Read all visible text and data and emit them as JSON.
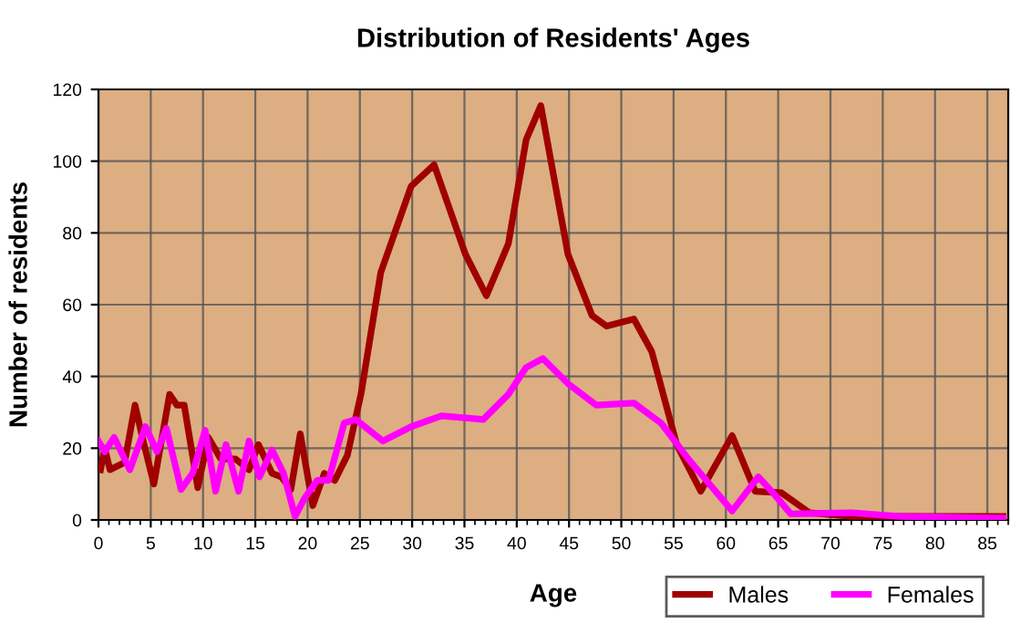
{
  "chart_data": {
    "type": "line",
    "title": "Distribution of Residents' Ages",
    "xlabel": "Age",
    "ylabel": "Number of residents",
    "xlim": [
      0,
      87
    ],
    "xticks": [
      0,
      5,
      10,
      15,
      20,
      25,
      30,
      35,
      40,
      45,
      50,
      55,
      60,
      65,
      70,
      75,
      80,
      85
    ],
    "ylim": [
      0,
      120
    ],
    "yticks": [
      0,
      20,
      40,
      60,
      80,
      100,
      120
    ],
    "grid": true,
    "legend": "bottom right",
    "marker": "none",
    "line_style": "solid",
    "series": [
      {
        "name": "Males",
        "color": "#a00000",
        "x": [
          0.2,
          0.6,
          1.1,
          2.5,
          3.5,
          4.2,
          5.3,
          6.8,
          7.5,
          8.2,
          9.5,
          10.5,
          11.7,
          13.1,
          14.4,
          15.3,
          16.6,
          17.5,
          18.4,
          19.3,
          20.5,
          21.6,
          22.6,
          23.8,
          25.1,
          27,
          29.9,
          32.1,
          35.1,
          37.1,
          39.2,
          40.9,
          42.3,
          44.9,
          47.2,
          48.6,
          51.2,
          52.9,
          55.3,
          57.6,
          60.6,
          62.8,
          65.3,
          68,
          72,
          86.5
        ],
        "values": [
          14,
          20,
          14,
          16,
          32,
          23,
          10,
          35,
          32,
          32,
          9,
          23,
          17,
          17,
          14,
          21,
          13,
          12,
          8.5,
          24,
          4,
          13,
          11,
          18,
          35,
          69,
          93,
          99,
          74,
          62.5,
          77,
          106,
          115.5,
          74,
          57,
          54,
          56,
          47,
          21,
          8,
          23.5,
          8,
          7.6,
          2,
          1,
          1
        ]
      },
      {
        "name": "Females",
        "color": "#ff00ff",
        "x": [
          0,
          0.6,
          1.5,
          3,
          4.5,
          5.6,
          6.5,
          7.9,
          9,
          10.2,
          11.2,
          12.2,
          13.4,
          14.4,
          15.4,
          16.6,
          17.7,
          18.8,
          19.7,
          20.9,
          22,
          23.5,
          24.6,
          27.2,
          29.9,
          32.8,
          36.8,
          39.2,
          40.9,
          42.5,
          44.9,
          47.6,
          51.2,
          53.8,
          56.4,
          60.6,
          63.1,
          64.5,
          66.2,
          72,
          76.6,
          86.5
        ],
        "values": [
          22,
          19,
          23,
          14,
          26,
          19,
          25.5,
          8.5,
          13,
          25,
          8,
          21,
          8,
          22,
          12,
          19.5,
          13,
          1,
          6,
          11,
          11,
          27,
          28,
          22,
          26,
          29,
          28,
          35,
          42.5,
          45,
          38,
          32,
          32.6,
          27,
          17,
          2.5,
          12,
          7.6,
          1.7,
          2,
          1,
          0.5
        ]
      }
    ]
  }
}
